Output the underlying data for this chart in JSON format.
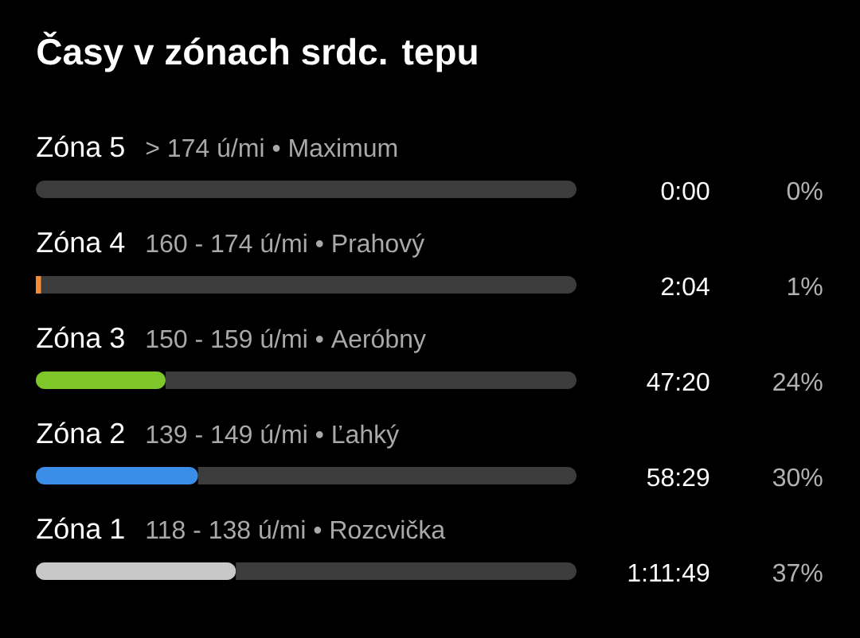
{
  "chart_data": {
    "type": "bar",
    "orientation": "horizontal",
    "stacked": true,
    "title": "Časy v zónach srdc. tepu",
    "categories": [
      "Zóna 5",
      "Zóna 4",
      "Zóna 3",
      "Zóna 2",
      "Zóna 1"
    ],
    "series": [
      {
        "values": [
          0,
          1,
          24,
          30,
          37
        ],
        "colors": [
          null,
          "#f28c38",
          "#7fc62b",
          "#3a8ee8",
          "#c8c8c8"
        ],
        "value_labels": [
          "0%",
          "1%",
          "24%",
          "30%",
          "37%"
        ]
      },
      {
        "values": [
          100,
          99,
          76,
          70,
          63
        ],
        "color": "#3c3c3c"
      }
    ],
    "xlim": [
      0,
      100
    ],
    "tick_labels": "y",
    "annotations": [
      "> 174 ú/mi • Maximum",
      "160 - 174 ú/mi • Prahový",
      "150 - 159 ú/mi • Aeróbny",
      "139 - 149 ú/mi • Ľahký",
      "118 - 138 ú/mi • Rozcvička",
      "0:00",
      "2:04",
      "47:20",
      "58:29",
      "1:11:49"
    ]
  }
}
